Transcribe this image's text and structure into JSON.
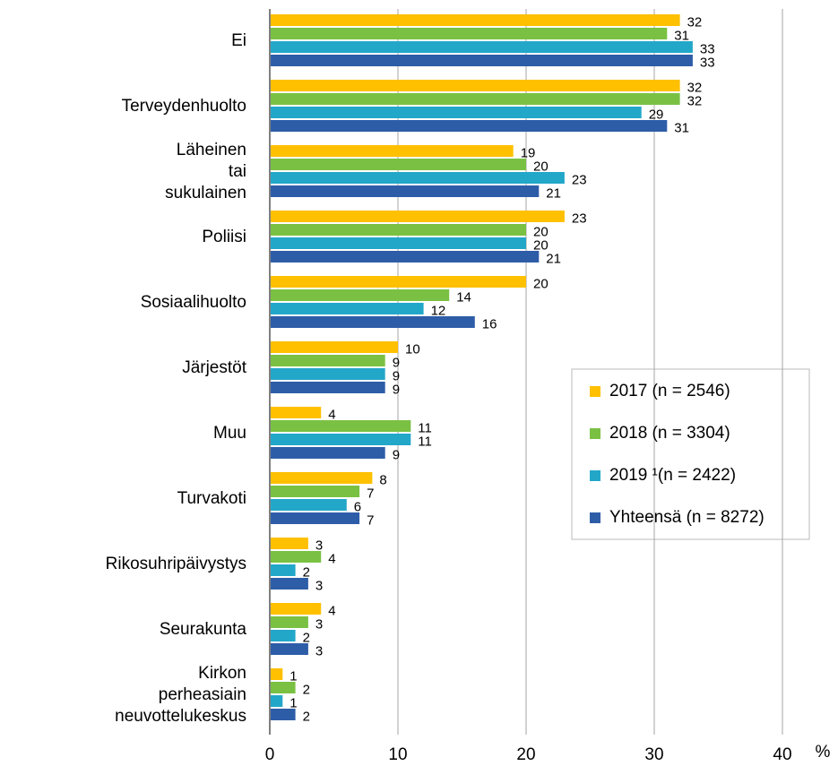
{
  "chart_data": {
    "type": "bar",
    "orientation": "horizontal",
    "xlabel": "%",
    "categories": [
      "Ei",
      "Terveydenhuolto",
      "Läheinen tai sukulainen",
      "Poliisi",
      "Sosiaalihuolto",
      "Järjestöt",
      "Muu",
      "Turvakoti",
      "Rikosuhripäivystys",
      "Seurakunta",
      "Kirkon perheasiain neuvottelukeskus"
    ],
    "series": [
      {
        "name": "2017 (n = 2546)",
        "color": "#ffc000",
        "values": [
          32,
          32,
          19,
          23,
          20,
          10,
          4,
          8,
          3,
          4,
          1
        ]
      },
      {
        "name": "2018 (n = 3304)",
        "color": "#7ac143",
        "values": [
          31,
          32,
          20,
          20,
          14,
          9,
          11,
          7,
          4,
          3,
          2
        ]
      },
      {
        "name": "2019 ¹(n = 2422)",
        "color": "#22a7c9",
        "values": [
          33,
          29,
          23,
          20,
          12,
          9,
          11,
          6,
          2,
          2,
          1
        ]
      },
      {
        "name": "Yhteensä (n = 8272)",
        "color": "#2e5da8",
        "values": [
          33,
          31,
          21,
          21,
          16,
          9,
          9,
          7,
          3,
          3,
          2
        ]
      }
    ],
    "xlim": [
      0,
      40
    ],
    "xticks": [
      0,
      10,
      20,
      30,
      40
    ],
    "grid": true,
    "legend": "right"
  }
}
